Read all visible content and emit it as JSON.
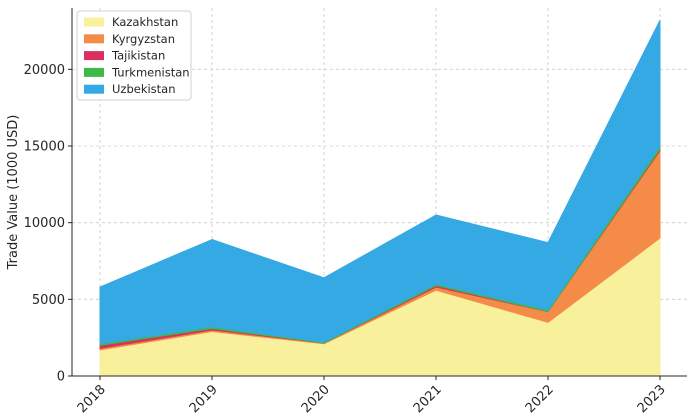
{
  "chart_data": {
    "type": "area",
    "stacked": true,
    "title": "",
    "xlabel": "",
    "ylabel": "Trade Value (1000 USD)",
    "categories": [
      "2018",
      "2019",
      "2020",
      "2021",
      "2022",
      "2023"
    ],
    "ylim": [
      0,
      24000
    ],
    "yticks": [
      0,
      5000,
      10000,
      15000,
      20000
    ],
    "ytick_labels": [
      "0",
      "5000",
      "10000",
      "15000",
      "20000"
    ],
    "grid": true,
    "legend_position": "top-left",
    "series": [
      {
        "name": "Kazakhstan",
        "color": "#f9f09b",
        "values": [
          1700,
          2900,
          2100,
          5600,
          3500,
          9000
        ]
      },
      {
        "name": "Kyrgyzstan",
        "color": "#f48b49",
        "values": [
          100,
          100,
          50,
          200,
          700,
          5700
        ]
      },
      {
        "name": "Tajikistan",
        "color": "#d9315f",
        "values": [
          200,
          100,
          0,
          100,
          0,
          100
        ]
      },
      {
        "name": "Turkmenistan",
        "color": "#3cb947",
        "values": [
          100,
          100,
          50,
          100,
          100,
          200
        ]
      },
      {
        "name": "Uzbekistan",
        "color": "#35a9e3",
        "values": [
          3700,
          5700,
          4200,
          4500,
          4400,
          8200
        ]
      }
    ]
  }
}
